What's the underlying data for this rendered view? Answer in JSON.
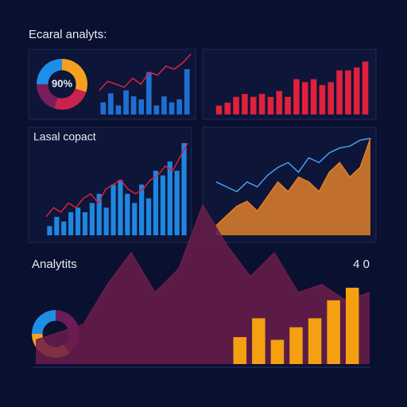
{
  "title": "Ecaral analyts:",
  "chart_data": [
    {
      "type": "pie",
      "center_label": "90%",
      "values": [
        30,
        25,
        20,
        25
      ],
      "colors": [
        "#f5a020",
        "#c8244e",
        "#7a1d5c",
        "#1e8ee8"
      ]
    },
    {
      "type": "combo",
      "ylim": [
        0,
        100
      ],
      "series": [
        {
          "kind": "bar",
          "color": "#1e6fd0",
          "values": [
            20,
            35,
            15,
            40,
            30,
            25,
            70,
            15,
            30,
            20,
            25,
            75
          ]
        },
        {
          "kind": "line",
          "color": "#e0204a",
          "values": [
            40,
            55,
            50,
            45,
            60,
            50,
            70,
            65,
            80,
            75,
            85,
            100
          ]
        }
      ]
    },
    {
      "type": "combo",
      "ylim": [
        0,
        100
      ],
      "series": [
        {
          "kind": "bar",
          "color": "#e0203c",
          "values": [
            15,
            20,
            30,
            35,
            30,
            35,
            30,
            40,
            30,
            60,
            55,
            60,
            50,
            55,
            75,
            75,
            80,
            90
          ]
        }
      ]
    },
    {
      "type": "combo",
      "title": "Lasal copact",
      "ylim": [
        0,
        100
      ],
      "series": [
        {
          "kind": "bar",
          "color": "#1f86e0",
          "values": [
            10,
            20,
            15,
            25,
            30,
            25,
            35,
            45,
            30,
            55,
            60,
            45,
            35,
            55,
            40,
            70,
            65,
            80,
            70,
            100
          ]
        },
        {
          "kind": "line",
          "color": "#d8203c",
          "values": [
            20,
            30,
            25,
            35,
            30,
            40,
            45,
            35,
            50,
            55,
            60,
            50,
            45,
            50,
            60,
            65,
            75,
            70,
            85,
            100
          ]
        }
      ]
    },
    {
      "type": "combo",
      "ylim": [
        0,
        100
      ],
      "series": [
        {
          "kind": "area",
          "color": "#e0802a",
          "values": [
            10,
            20,
            30,
            35,
            25,
            40,
            55,
            45,
            60,
            55,
            45,
            65,
            75,
            60,
            70,
            100
          ]
        },
        {
          "kind": "line",
          "color": "#4a9ff0",
          "values": [
            55,
            50,
            45,
            55,
            50,
            62,
            70,
            75,
            65,
            80,
            75,
            85,
            90,
            92,
            98,
            100
          ]
        }
      ]
    },
    {
      "type": "pie",
      "title": "Analytits",
      "subtitle": "4 0",
      "values": [
        40,
        35,
        25
      ],
      "colors": [
        "#6a1d5a",
        "#f5a020",
        "#1e8ee8"
      ]
    },
    {
      "type": "combo",
      "ylim": [
        0,
        100
      ],
      "series": [
        {
          "kind": "area",
          "color": "#6a1d4a",
          "values": [
            15,
            20,
            25,
            50,
            70,
            45,
            60,
            100,
            75,
            55,
            70,
            45,
            50,
            40,
            45
          ]
        }
      ]
    },
    {
      "type": "combo",
      "ylim": [
        0,
        100
      ],
      "series": [
        {
          "kind": "bar",
          "color": "#f5a010",
          "values": [
            30,
            51,
            27,
            41,
            51,
            71,
            85
          ]
        }
      ]
    }
  ]
}
